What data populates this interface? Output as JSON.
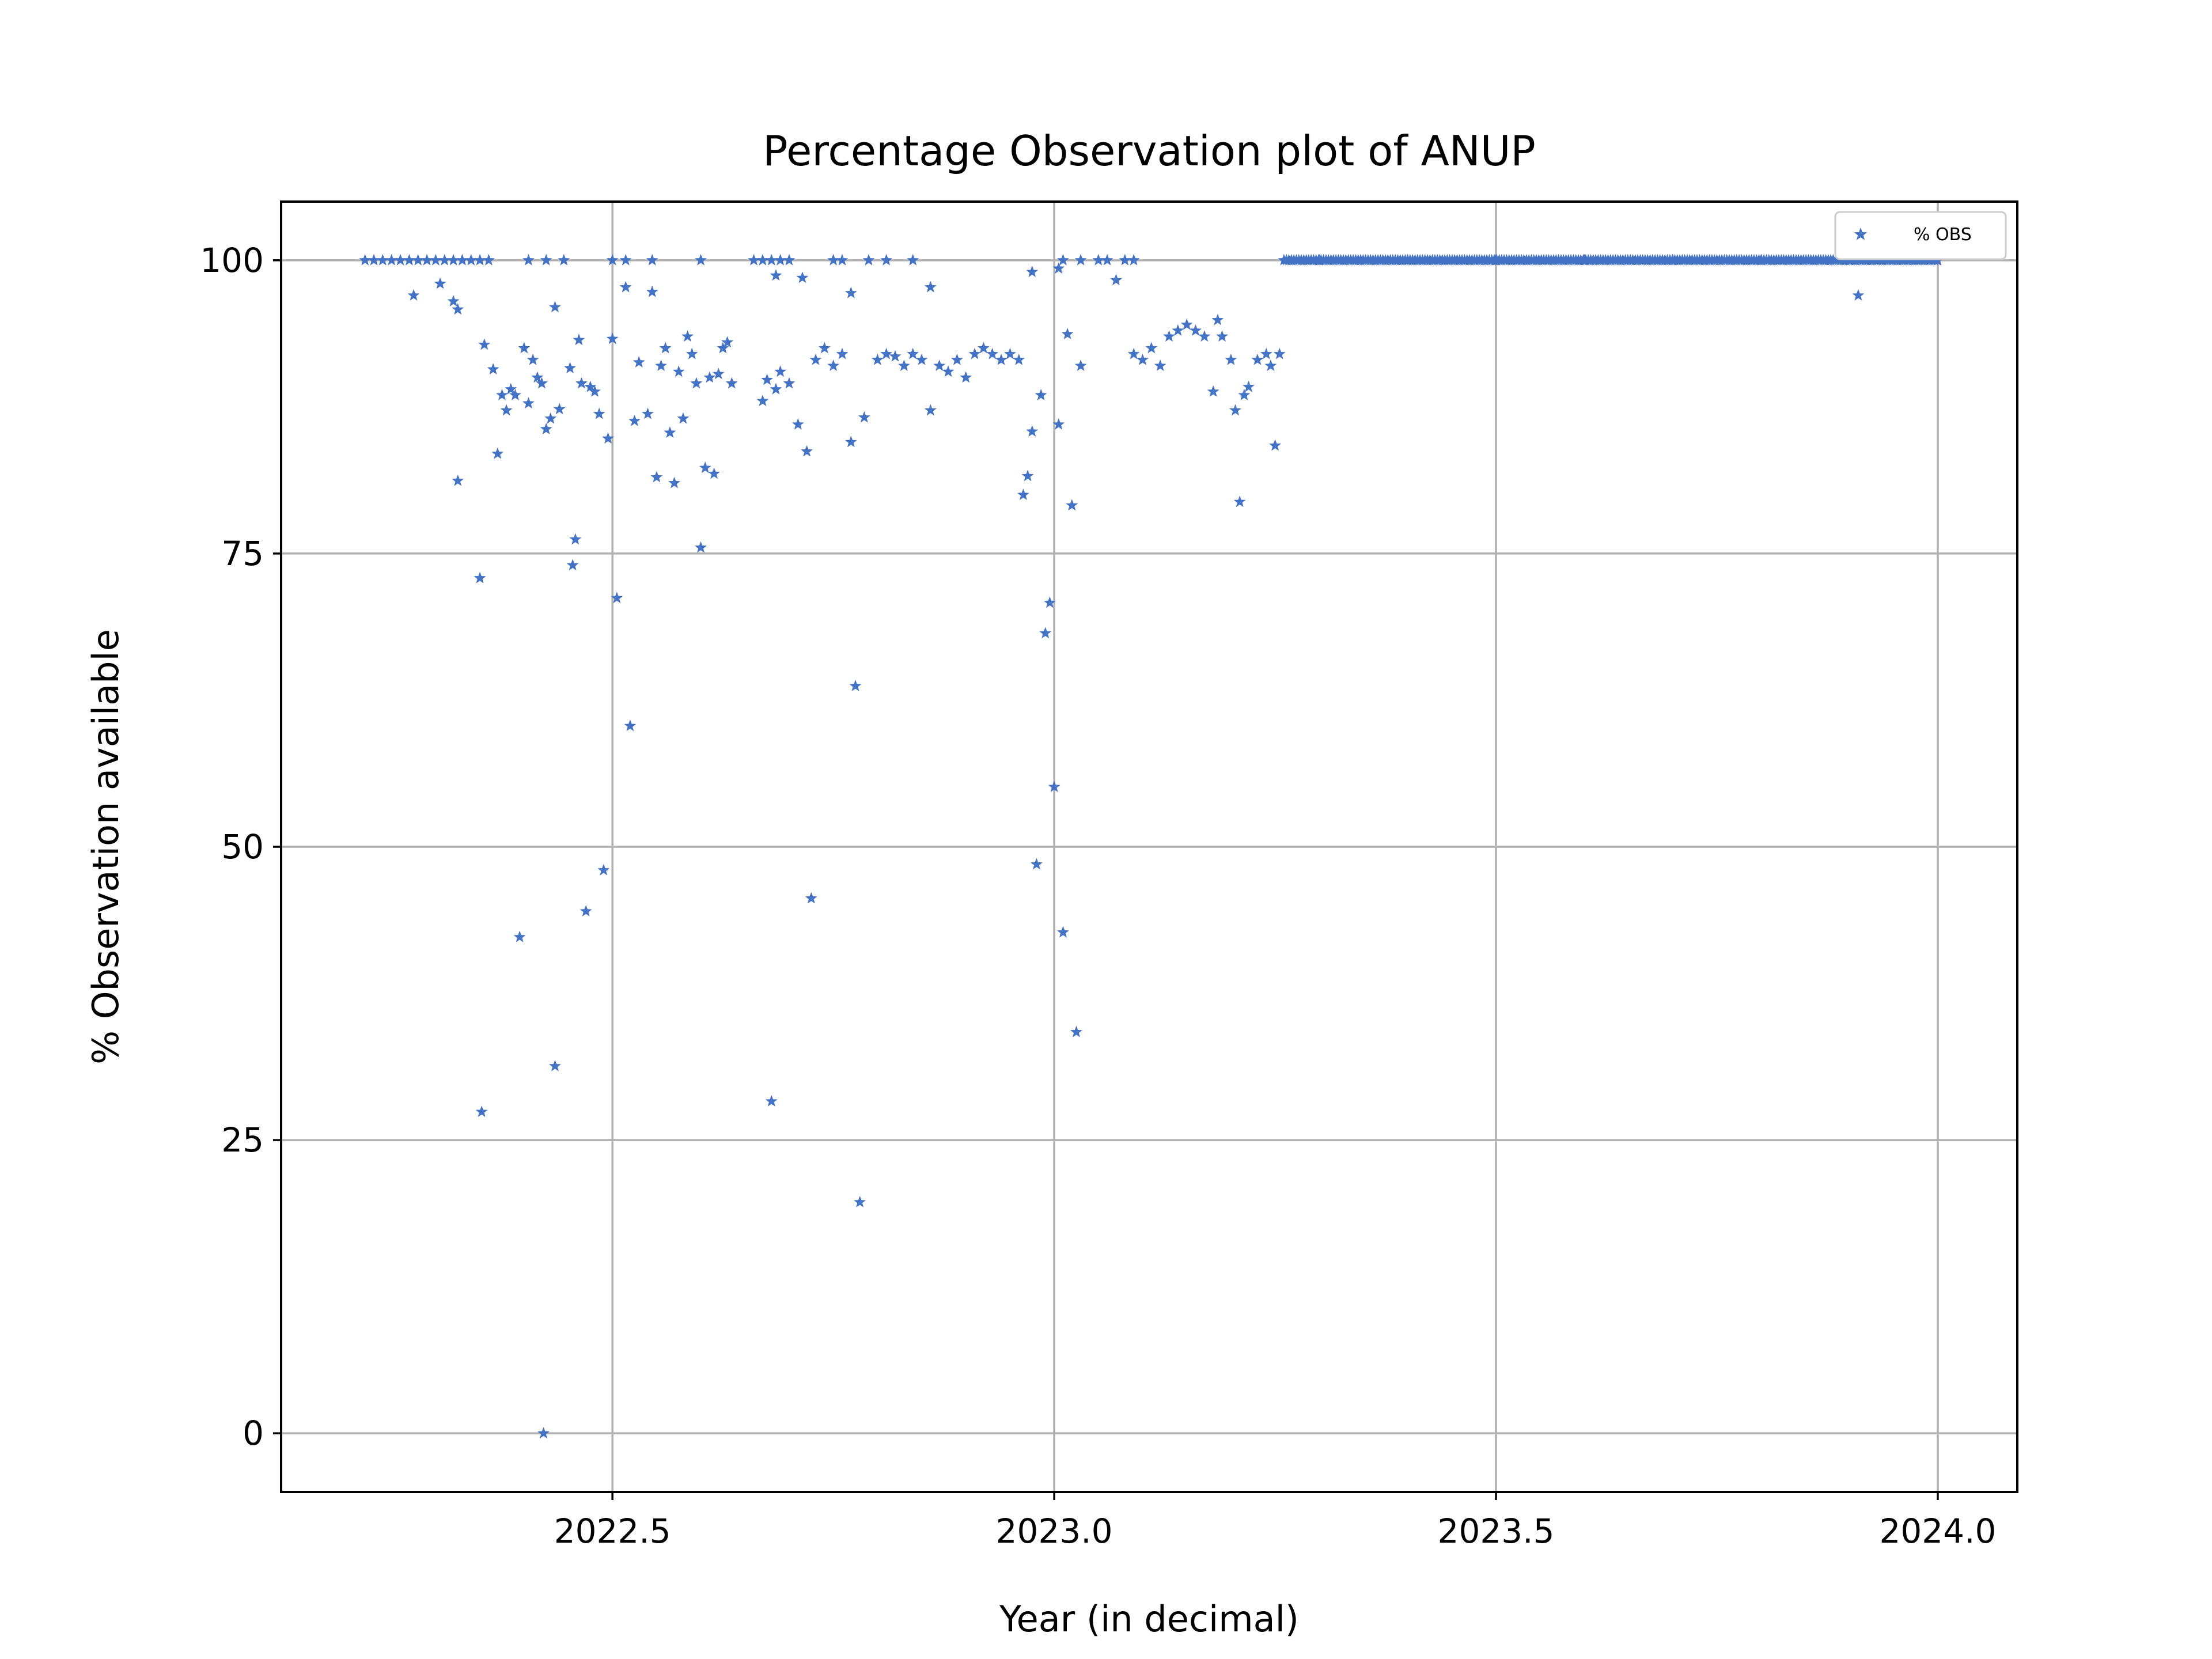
{
  "chart_data": {
    "type": "scatter",
    "title": "Percentage Observation plot of ANUP",
    "xlabel": "Year (in decimal)",
    "ylabel": "% Observation available",
    "xlim": [
      2022.125,
      2024.09
    ],
    "ylim": [
      -5,
      105
    ],
    "xticks": [
      2022.5,
      2023.0,
      2023.5,
      2024.0
    ],
    "xtick_labels": [
      "2022.5",
      "2023.0",
      "2023.5",
      "2024.0"
    ],
    "yticks": [
      0,
      25,
      50,
      75,
      100
    ],
    "ytick_labels": [
      "0",
      "25",
      "50",
      "75",
      "100"
    ],
    "grid": true,
    "legend_position": "top-right",
    "marker": "star",
    "color": "#4472c4",
    "series": [
      {
        "name": "% OBS",
        "points": [
          [
            2022.22,
            100
          ],
          [
            2022.23,
            100
          ],
          [
            2022.24,
            100
          ],
          [
            2022.25,
            100
          ],
          [
            2022.26,
            100
          ],
          [
            2022.27,
            100
          ],
          [
            2022.28,
            100
          ],
          [
            2022.29,
            100
          ],
          [
            2022.3,
            100
          ],
          [
            2022.31,
            100
          ],
          [
            2022.32,
            100
          ],
          [
            2022.33,
            100
          ],
          [
            2022.34,
            100
          ],
          [
            2022.35,
            100
          ],
          [
            2022.36,
            100
          ],
          [
            2022.405,
            100
          ],
          [
            2022.425,
            100
          ],
          [
            2022.445,
            100
          ],
          [
            2022.5,
            100
          ],
          [
            2022.515,
            100
          ],
          [
            2022.545,
            100
          ],
          [
            2022.6,
            100
          ],
          [
            2022.66,
            100
          ],
          [
            2022.67,
            100
          ],
          [
            2022.68,
            100
          ],
          [
            2022.69,
            100
          ],
          [
            2022.7,
            100
          ],
          [
            2022.75,
            100
          ],
          [
            2022.76,
            100
          ],
          [
            2022.79,
            100
          ],
          [
            2022.81,
            100
          ],
          [
            2022.84,
            100
          ],
          [
            2023.01,
            100
          ],
          [
            2023.03,
            100
          ],
          [
            2023.05,
            100
          ],
          [
            2023.06,
            100
          ],
          [
            2023.08,
            100
          ],
          [
            2023.09,
            100
          ],
          [
            2022.275,
            97
          ],
          [
            2022.32,
            96.5
          ],
          [
            2022.325,
            95.8
          ],
          [
            2022.305,
            98
          ],
          [
            2022.435,
            96
          ],
          [
            2022.515,
            97.7
          ],
          [
            2022.545,
            97.3
          ],
          [
            2022.685,
            98.7
          ],
          [
            2022.715,
            98.5
          ],
          [
            2022.77,
            97.2
          ],
          [
            2022.86,
            97.7
          ],
          [
            2022.975,
            99
          ],
          [
            2023.005,
            99.3
          ],
          [
            2023.07,
            98.3
          ],
          [
            2022.325,
            81.2
          ],
          [
            2022.35,
            72.9
          ],
          [
            2022.352,
            27.4
          ],
          [
            2022.355,
            92.8
          ],
          [
            2022.37,
            83.5
          ],
          [
            2022.365,
            90.7
          ],
          [
            2022.375,
            88.5
          ],
          [
            2022.38,
            87.2
          ],
          [
            2022.385,
            89
          ],
          [
            2022.39,
            88.5
          ],
          [
            2022.395,
            42.3
          ],
          [
            2022.4,
            92.5
          ],
          [
            2022.405,
            87.8
          ],
          [
            2022.41,
            91.5
          ],
          [
            2022.415,
            90
          ],
          [
            2022.42,
            89.5
          ],
          [
            2022.422,
            0
          ],
          [
            2022.425,
            85.6
          ],
          [
            2022.43,
            86.5
          ],
          [
            2022.435,
            31.3
          ],
          [
            2022.44,
            87.3
          ],
          [
            2022.452,
            90.8
          ],
          [
            2022.455,
            74
          ],
          [
            2022.458,
            76.2
          ],
          [
            2022.462,
            93.2
          ],
          [
            2022.465,
            89.5
          ],
          [
            2022.47,
            44.5
          ],
          [
            2022.475,
            89.2
          ],
          [
            2022.48,
            88.8
          ],
          [
            2022.485,
            86.9
          ],
          [
            2022.49,
            48
          ],
          [
            2022.495,
            84.8
          ],
          [
            2022.5,
            93.3
          ],
          [
            2022.505,
            71.2
          ],
          [
            2022.52,
            60.3
          ],
          [
            2022.525,
            86.3
          ],
          [
            2022.53,
            91.3
          ],
          [
            2022.54,
            86.9
          ],
          [
            2022.55,
            81.5
          ],
          [
            2022.555,
            91
          ],
          [
            2022.56,
            92.5
          ],
          [
            2022.565,
            85.3
          ],
          [
            2022.57,
            81
          ],
          [
            2022.575,
            90.5
          ],
          [
            2022.58,
            86.5
          ],
          [
            2022.585,
            93.5
          ],
          [
            2022.59,
            92
          ],
          [
            2022.595,
            89.5
          ],
          [
            2022.6,
            75.5
          ],
          [
            2022.605,
            82.3
          ],
          [
            2022.61,
            90
          ],
          [
            2022.615,
            81.8
          ],
          [
            2022.62,
            90.3
          ],
          [
            2022.625,
            92.5
          ],
          [
            2022.63,
            93
          ],
          [
            2022.635,
            89.5
          ],
          [
            2022.67,
            88
          ],
          [
            2022.675,
            89.8
          ],
          [
            2022.68,
            28.3
          ],
          [
            2022.685,
            89
          ],
          [
            2022.69,
            90.5
          ],
          [
            2022.7,
            89.5
          ],
          [
            2022.71,
            86
          ],
          [
            2022.72,
            83.7
          ],
          [
            2022.725,
            45.6
          ],
          [
            2022.73,
            91.5
          ],
          [
            2022.74,
            92.5
          ],
          [
            2022.75,
            91
          ],
          [
            2022.76,
            92
          ],
          [
            2022.77,
            84.5
          ],
          [
            2022.775,
            63.7
          ],
          [
            2022.78,
            19.7
          ],
          [
            2022.785,
            86.6
          ],
          [
            2022.8,
            91.5
          ],
          [
            2022.81,
            92
          ],
          [
            2022.82,
            91.8
          ],
          [
            2022.83,
            91
          ],
          [
            2022.84,
            92
          ],
          [
            2022.85,
            91.5
          ],
          [
            2022.86,
            87.2
          ],
          [
            2022.87,
            91
          ],
          [
            2022.88,
            90.5
          ],
          [
            2022.89,
            91.5
          ],
          [
            2022.9,
            90
          ],
          [
            2022.91,
            92
          ],
          [
            2022.92,
            92.5
          ],
          [
            2022.93,
            92
          ],
          [
            2022.94,
            91.5
          ],
          [
            2022.95,
            92
          ],
          [
            2022.96,
            91.5
          ],
          [
            2022.965,
            80
          ],
          [
            2022.97,
            81.6
          ],
          [
            2022.975,
            85.4
          ],
          [
            2022.98,
            48.5
          ],
          [
            2022.985,
            88.5
          ],
          [
            2022.99,
            68.2
          ],
          [
            2022.995,
            70.8
          ],
          [
            2023.0,
            55.1
          ],
          [
            2023.005,
            86
          ],
          [
            2023.01,
            42.7
          ],
          [
            2023.015,
            93.7
          ],
          [
            2023.02,
            79.1
          ],
          [
            2023.025,
            34.2
          ],
          [
            2023.03,
            91
          ],
          [
            2023.09,
            92
          ],
          [
            2023.1,
            91.5
          ],
          [
            2023.11,
            92.5
          ],
          [
            2023.12,
            91
          ],
          [
            2023.13,
            93.5
          ],
          [
            2023.14,
            94
          ],
          [
            2023.15,
            94.5
          ],
          [
            2023.16,
            94
          ],
          [
            2023.17,
            93.5
          ],
          [
            2023.18,
            88.8
          ],
          [
            2023.185,
            94.9
          ],
          [
            2023.19,
            93.5
          ],
          [
            2023.2,
            91.5
          ],
          [
            2023.205,
            87.2
          ],
          [
            2023.21,
            79.4
          ],
          [
            2023.215,
            88.5
          ],
          [
            2023.22,
            89.2
          ],
          [
            2023.23,
            91.5
          ],
          [
            2023.24,
            92
          ],
          [
            2023.245,
            91
          ],
          [
            2023.25,
            84.2
          ],
          [
            2023.255,
            92
          ],
          [
            2023.3,
            100
          ],
          [
            2023.4,
            100
          ],
          [
            2023.5,
            100
          ],
          [
            2023.6,
            100
          ],
          [
            2023.7,
            100
          ],
          [
            2023.8,
            100
          ],
          [
            2023.9,
            100
          ],
          [
            2024.0,
            100
          ],
          [
            2023.91,
            97
          ]
        ]
      }
    ]
  }
}
